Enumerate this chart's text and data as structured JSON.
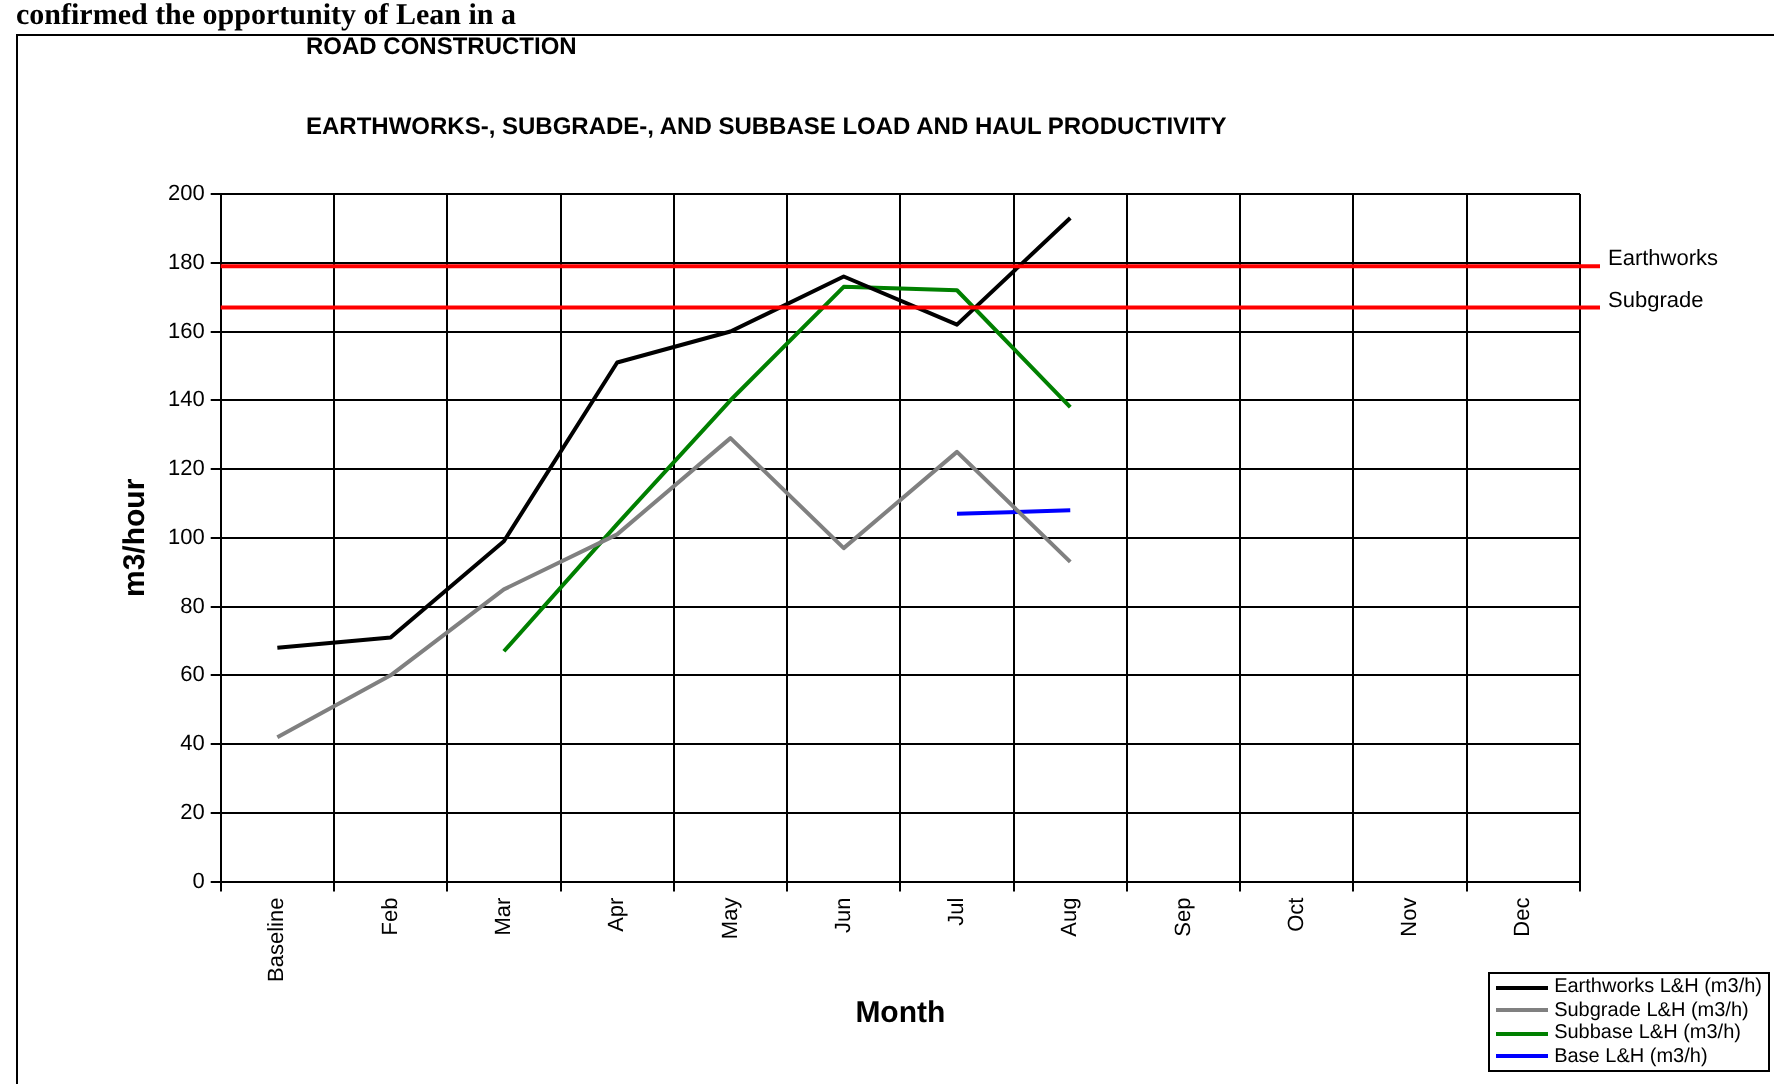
{
  "chart_data": {
    "type": "line",
    "title": "ROAD CONSTRUCTION",
    "subtitle": "EARTHWORKS-, SUBGRADE-, AND SUBBASE LOAD AND HAUL PRODUCTIVITY",
    "xlabel": "Month",
    "ylabel": "m3/hour",
    "annotations": [
      "confirmed the opportunity of Lean in a"
    ],
    "categories": [
      "Baseline",
      "Feb",
      "Mar",
      "Apr",
      "May",
      "Jun",
      "Jul",
      "Aug",
      "Sep",
      "Oct",
      "Nov",
      "Dec"
    ],
    "series": [
      {
        "name": "Earthworks L&H (m3/h)",
        "color": "#000000",
        "values": [
          68,
          71,
          99,
          151,
          160,
          176,
          162,
          193,
          null,
          null,
          null,
          null
        ]
      },
      {
        "name": "Subgrade L&H (m3/h)",
        "color": "#808080",
        "values": [
          42,
          60,
          85,
          101,
          129,
          97,
          125,
          93,
          null,
          null,
          null,
          null
        ]
      },
      {
        "name": "Subbase L&H (m3/h)",
        "color": "#008000",
        "values": [
          null,
          null,
          67,
          104,
          140,
          173,
          172,
          138,
          null,
          null,
          null,
          null
        ]
      },
      {
        "name": "Base L&H (m3/h)",
        "color": "#0000ff",
        "values": [
          null,
          null,
          null,
          null,
          null,
          null,
          107,
          108,
          null,
          null,
          null,
          null
        ]
      }
    ],
    "ref_lines": [
      {
        "axis": "y",
        "value": 179,
        "label": "Earthworks",
        "color": "#ff0000"
      },
      {
        "axis": "y",
        "value": 167,
        "label": "Subgrade",
        "color": "#ff0000"
      }
    ],
    "ylim": [
      0,
      200
    ],
    "yticks": [
      0,
      20,
      40,
      60,
      80,
      100,
      120,
      140,
      160,
      180,
      200
    ],
    "grid": true,
    "legend": "bottom right",
    "marker": "none",
    "line_style": "solid"
  }
}
